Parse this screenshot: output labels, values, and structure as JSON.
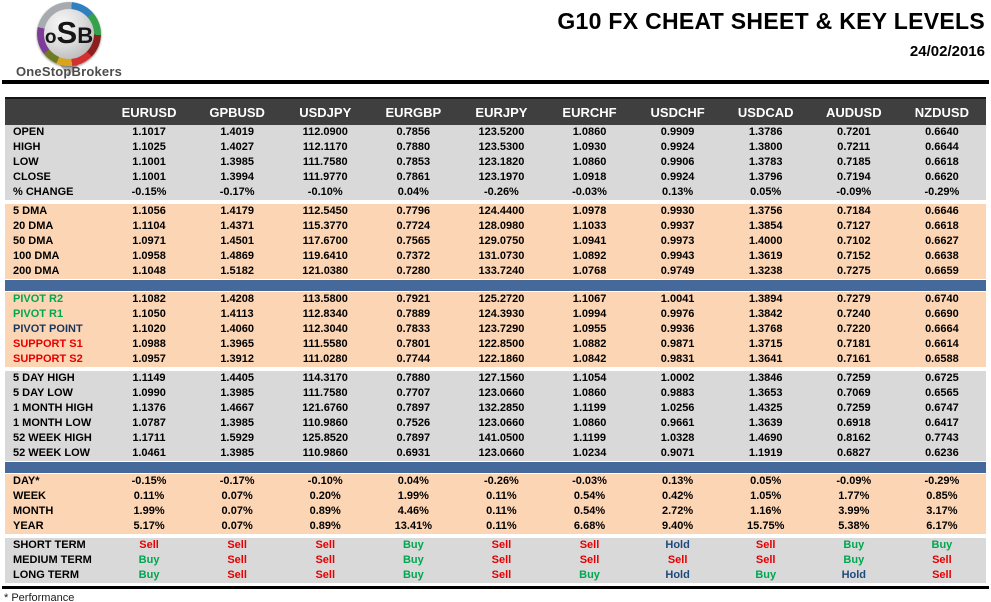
{
  "brand": {
    "logo_o": "o",
    "logo_s": "S",
    "logo_b": "B",
    "name": "OneStopBrokers"
  },
  "header": {
    "title": "G10 FX CHEAT SHEET & KEY LEVELS",
    "date": "24/02/2016"
  },
  "colors": {
    "header_row_bg": "#3f3f3f",
    "section_gray": "#d9d9d9",
    "section_peach": "#fcd5b4",
    "divider_blue": "#46699b",
    "buy_green": "#00a650",
    "sell_red": "#e60000",
    "hold_navy": "#1f497d",
    "pivot_navy": "#17365d"
  },
  "table": {
    "columns": [
      "EURUSD",
      "GPBUSD",
      "USDJPY",
      "EURGBP",
      "EURJPY",
      "EURCHF",
      "USDCHF",
      "USDCAD",
      "AUDUSD",
      "NZDUSD"
    ],
    "sections": [
      {
        "id": "ohlc",
        "bg": "gray",
        "sep": "none",
        "rows": [
          {
            "label": "OPEN",
            "values": [
              "1.1017",
              "1.4019",
              "112.0900",
              "0.7856",
              "123.5200",
              "1.0860",
              "0.9909",
              "1.3786",
              "0.7201",
              "0.6640"
            ]
          },
          {
            "label": "HIGH",
            "values": [
              "1.1025",
              "1.4027",
              "112.1170",
              "0.7880",
              "123.5300",
              "1.0930",
              "0.9924",
              "1.3800",
              "0.7211",
              "0.6644"
            ]
          },
          {
            "label": "LOW",
            "values": [
              "1.1001",
              "1.3985",
              "111.7580",
              "0.7853",
              "123.1820",
              "1.0860",
              "0.9906",
              "1.3783",
              "0.7185",
              "0.6618"
            ]
          },
          {
            "label": "CLOSE",
            "values": [
              "1.1001",
              "1.3994",
              "111.9770",
              "0.7861",
              "123.1970",
              "1.0918",
              "0.9924",
              "1.3796",
              "0.7194",
              "0.6620"
            ]
          },
          {
            "label": "% CHANGE",
            "values": [
              "-0.15%",
              "-0.17%",
              "-0.10%",
              "0.04%",
              "-0.26%",
              "-0.03%",
              "0.13%",
              "0.05%",
              "-0.09%",
              "-0.29%"
            ]
          }
        ]
      },
      {
        "id": "dma",
        "bg": "peach",
        "sep": "gap",
        "rows": [
          {
            "label": "5 DMA",
            "values": [
              "1.1056",
              "1.4179",
              "112.5450",
              "0.7796",
              "124.4400",
              "1.0978",
              "0.9930",
              "1.3756",
              "0.7184",
              "0.6646"
            ]
          },
          {
            "label": "20 DMA",
            "values": [
              "1.1104",
              "1.4371",
              "115.3770",
              "0.7724",
              "128.0980",
              "1.1033",
              "0.9937",
              "1.3854",
              "0.7127",
              "0.6618"
            ]
          },
          {
            "label": "50 DMA",
            "values": [
              "1.0971",
              "1.4501",
              "117.6700",
              "0.7565",
              "129.0750",
              "1.0941",
              "0.9973",
              "1.4000",
              "0.7102",
              "0.6627"
            ]
          },
          {
            "label": "100 DMA",
            "values": [
              "1.0958",
              "1.4869",
              "119.6410",
              "0.7372",
              "131.0730",
              "1.0892",
              "0.9943",
              "1.3619",
              "0.7152",
              "0.6638"
            ]
          },
          {
            "label": "200 DMA",
            "values": [
              "1.1048",
              "1.5182",
              "121.0380",
              "0.7280",
              "133.7240",
              "1.0768",
              "0.9749",
              "1.3238",
              "0.7275",
              "0.6659"
            ]
          }
        ]
      },
      {
        "id": "pivots",
        "bg": "peach",
        "sep": "bar",
        "rows": [
          {
            "label": "PIVOT R2",
            "label_color": "green",
            "values": [
              "1.1082",
              "1.4208",
              "113.5800",
              "0.7921",
              "125.2720",
              "1.1067",
              "1.0041",
              "1.3894",
              "0.7279",
              "0.6740"
            ]
          },
          {
            "label": "PIVOT R1",
            "label_color": "green",
            "values": [
              "1.1050",
              "1.4113",
              "112.8340",
              "0.7889",
              "124.3930",
              "1.0994",
              "0.9976",
              "1.3842",
              "0.7240",
              "0.6690"
            ]
          },
          {
            "label": "PIVOT POINT",
            "label_color": "navy",
            "values": [
              "1.1020",
              "1.4060",
              "112.3040",
              "0.7833",
              "123.7290",
              "1.0955",
              "0.9936",
              "1.3768",
              "0.7220",
              "0.6664"
            ]
          },
          {
            "label": "SUPPORT S1",
            "label_color": "red",
            "values": [
              "1.0988",
              "1.3965",
              "111.5580",
              "0.7801",
              "122.8500",
              "1.0882",
              "0.9871",
              "1.3715",
              "0.7181",
              "0.6614"
            ]
          },
          {
            "label": "SUPPORT S2",
            "label_color": "red",
            "values": [
              "1.0957",
              "1.3912",
              "111.0280",
              "0.7744",
              "122.1860",
              "1.0842",
              "0.9831",
              "1.3641",
              "0.7161",
              "0.6588"
            ]
          }
        ]
      },
      {
        "id": "ranges",
        "bg": "gray",
        "sep": "gap",
        "rows": [
          {
            "label": "5 DAY HIGH",
            "values": [
              "1.1149",
              "1.4405",
              "114.3170",
              "0.7880",
              "127.1560",
              "1.1054",
              "1.0002",
              "1.3846",
              "0.7259",
              "0.6725"
            ]
          },
          {
            "label": "5 DAY LOW",
            "values": [
              "1.0990",
              "1.3985",
              "111.7580",
              "0.7707",
              "123.0660",
              "1.0860",
              "0.9883",
              "1.3653",
              "0.7069",
              "0.6565"
            ]
          },
          {
            "label": "1 MONTH HIGH",
            "values": [
              "1.1376",
              "1.4667",
              "121.6760",
              "0.7897",
              "132.2850",
              "1.1199",
              "1.0256",
              "1.4325",
              "0.7259",
              "0.6747"
            ]
          },
          {
            "label": "1 MONTH LOW",
            "values": [
              "1.0787",
              "1.3985",
              "110.9860",
              "0.7526",
              "123.0660",
              "1.0860",
              "0.9661",
              "1.3639",
              "0.6918",
              "0.6417"
            ]
          },
          {
            "label": "52 WEEK HIGH",
            "values": [
              "1.1711",
              "1.5929",
              "125.8520",
              "0.7897",
              "141.0500",
              "1.1199",
              "1.0328",
              "1.4690",
              "0.8162",
              "0.7743"
            ]
          },
          {
            "label": "52 WEEK LOW",
            "values": [
              "1.0461",
              "1.3985",
              "110.9860",
              "0.6931",
              "123.0660",
              "1.0234",
              "0.9071",
              "1.1919",
              "0.6827",
              "0.6236"
            ]
          }
        ]
      },
      {
        "id": "performance",
        "bg": "peach",
        "sep": "bar",
        "rows": [
          {
            "label": "DAY*",
            "values": [
              "-0.15%",
              "-0.17%",
              "-0.10%",
              "0.04%",
              "-0.26%",
              "-0.03%",
              "0.13%",
              "0.05%",
              "-0.09%",
              "-0.29%"
            ]
          },
          {
            "label": "WEEK",
            "values": [
              "0.11%",
              "0.07%",
              "0.20%",
              "1.99%",
              "0.11%",
              "0.54%",
              "0.42%",
              "1.05%",
              "1.77%",
              "0.85%"
            ]
          },
          {
            "label": "MONTH",
            "values": [
              "1.99%",
              "0.07%",
              "0.89%",
              "4.46%",
              "0.11%",
              "0.54%",
              "2.72%",
              "1.16%",
              "3.99%",
              "3.17%"
            ]
          },
          {
            "label": "YEAR",
            "values": [
              "5.17%",
              "0.07%",
              "0.89%",
              "13.41%",
              "0.11%",
              "6.68%",
              "9.40%",
              "15.75%",
              "5.38%",
              "6.17%"
            ]
          }
        ]
      },
      {
        "id": "signals",
        "bg": "gray",
        "sep": "gap",
        "rows": [
          {
            "label": "SHORT TERM",
            "values": [
              "Sell",
              "Sell",
              "Sell",
              "Buy",
              "Sell",
              "Sell",
              "Hold",
              "Sell",
              "Buy",
              "Buy"
            ]
          },
          {
            "label": "MEDIUM TERM",
            "values": [
              "Buy",
              "Sell",
              "Sell",
              "Buy",
              "Sell",
              "Sell",
              "Sell",
              "Sell",
              "Buy",
              "Sell"
            ]
          },
          {
            "label": "LONG TERM",
            "values": [
              "Buy",
              "Sell",
              "Sell",
              "Buy",
              "Sell",
              "Buy",
              "Hold",
              "Buy",
              "Hold",
              "Sell"
            ]
          }
        ]
      }
    ]
  },
  "footer": {
    "note": "* Performance"
  }
}
